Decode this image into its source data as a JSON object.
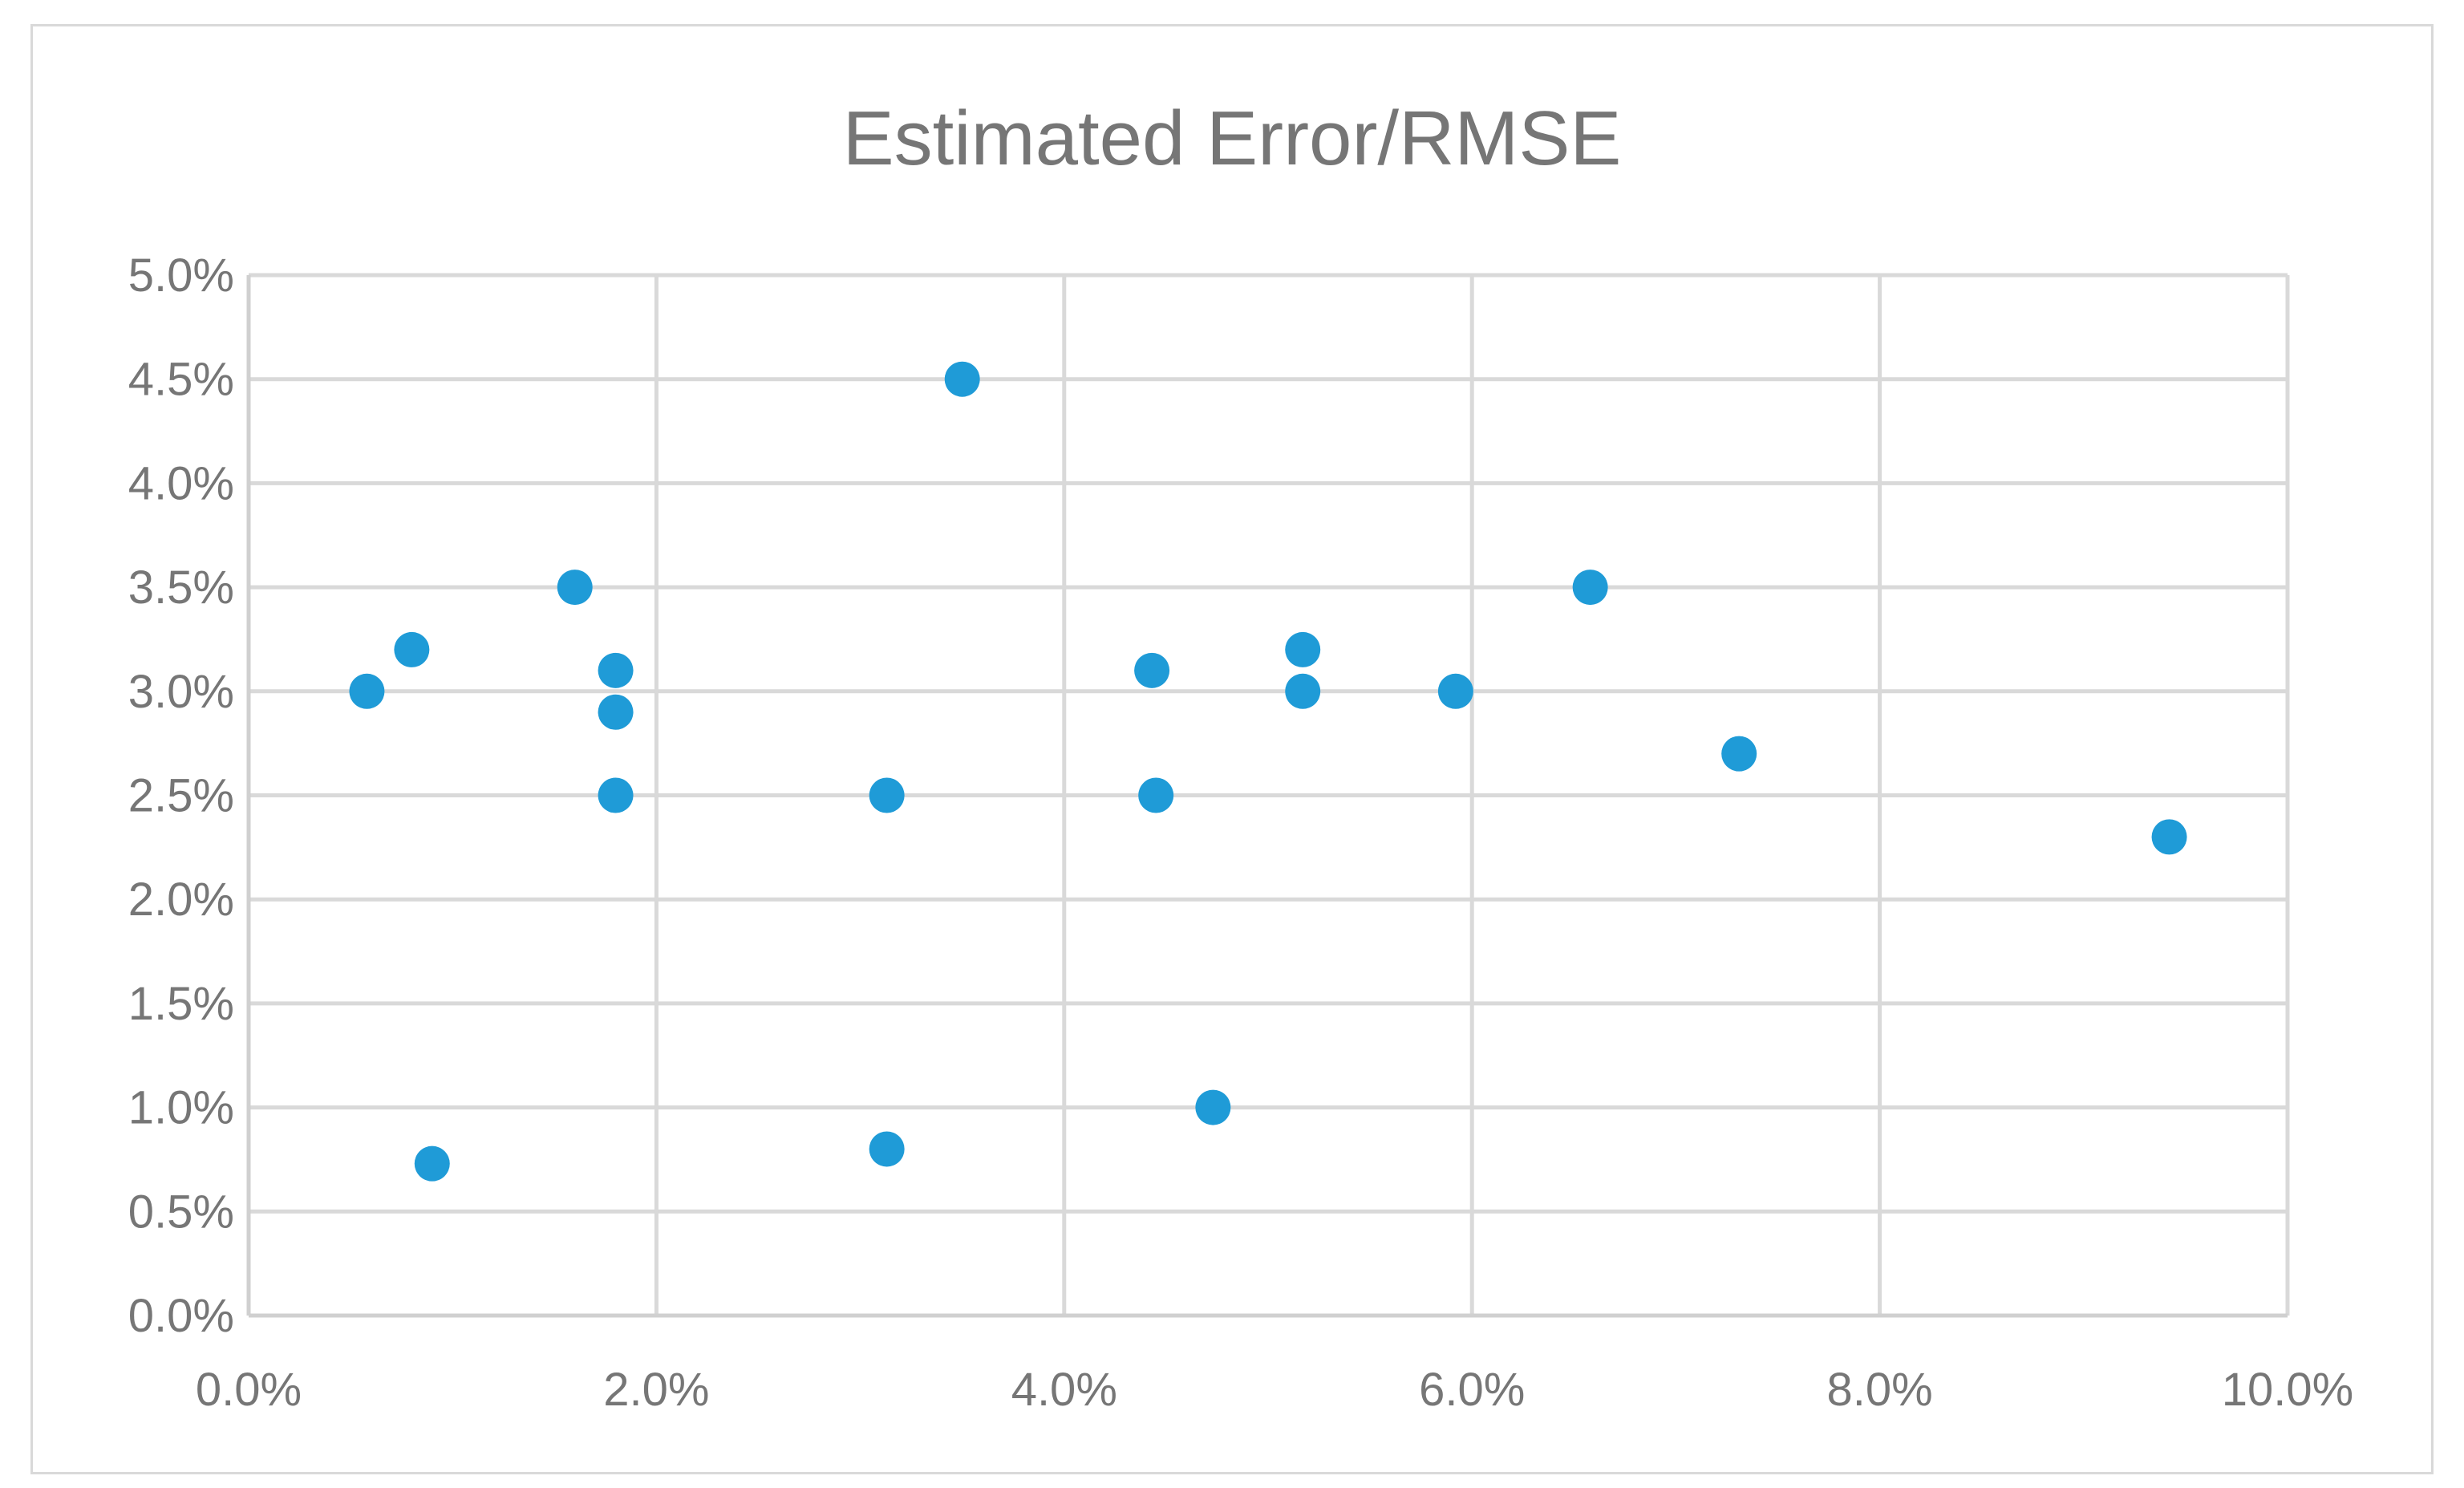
{
  "chart_data": {
    "type": "scatter",
    "title": "Estimated Error/RMSE",
    "xlabel": "",
    "ylabel": "",
    "xlim": [
      0.0,
      10.0
    ],
    "ylim": [
      0.0,
      5.0
    ],
    "x_ticks": [
      0.0,
      2.0,
      4.0,
      6.0,
      8.0,
      10.0
    ],
    "y_ticks": [
      0.0,
      0.5,
      1.0,
      1.5,
      2.0,
      2.5,
      3.0,
      3.5,
      4.0,
      4.5,
      5.0
    ],
    "x_tick_labels": [
      "0.0%",
      "2.0%",
      "4.0%",
      "6.0%",
      "8.0%",
      "10.0%"
    ],
    "y_tick_labels": [
      "0.0%",
      "0.5%",
      "1.0%",
      "1.5%",
      "2.0%",
      "2.5%",
      "3.0%",
      "3.5%",
      "4.0%",
      "4.5%",
      "5.0%"
    ],
    "grid": true,
    "legend": "none",
    "marker_color": "#1f9bd7",
    "grid_color": "#d9d9d9",
    "points": [
      {
        "x": 0.58,
        "y": 3.0
      },
      {
        "x": 0.8,
        "y": 3.2
      },
      {
        "x": 0.9,
        "y": 0.73
      },
      {
        "x": 1.6,
        "y": 3.5
      },
      {
        "x": 1.8,
        "y": 3.1
      },
      {
        "x": 1.8,
        "y": 2.9
      },
      {
        "x": 1.8,
        "y": 2.5
      },
      {
        "x": 3.13,
        "y": 2.5
      },
      {
        "x": 3.13,
        "y": 0.8
      },
      {
        "x": 3.5,
        "y": 4.5
      },
      {
        "x": 4.43,
        "y": 3.1
      },
      {
        "x": 4.45,
        "y": 2.5
      },
      {
        "x": 4.73,
        "y": 1.0
      },
      {
        "x": 5.17,
        "y": 3.2
      },
      {
        "x": 5.17,
        "y": 3.0
      },
      {
        "x": 5.92,
        "y": 3.0
      },
      {
        "x": 6.58,
        "y": 3.5
      },
      {
        "x": 7.31,
        "y": 2.7
      },
      {
        "x": 9.42,
        "y": 2.3
      }
    ]
  }
}
